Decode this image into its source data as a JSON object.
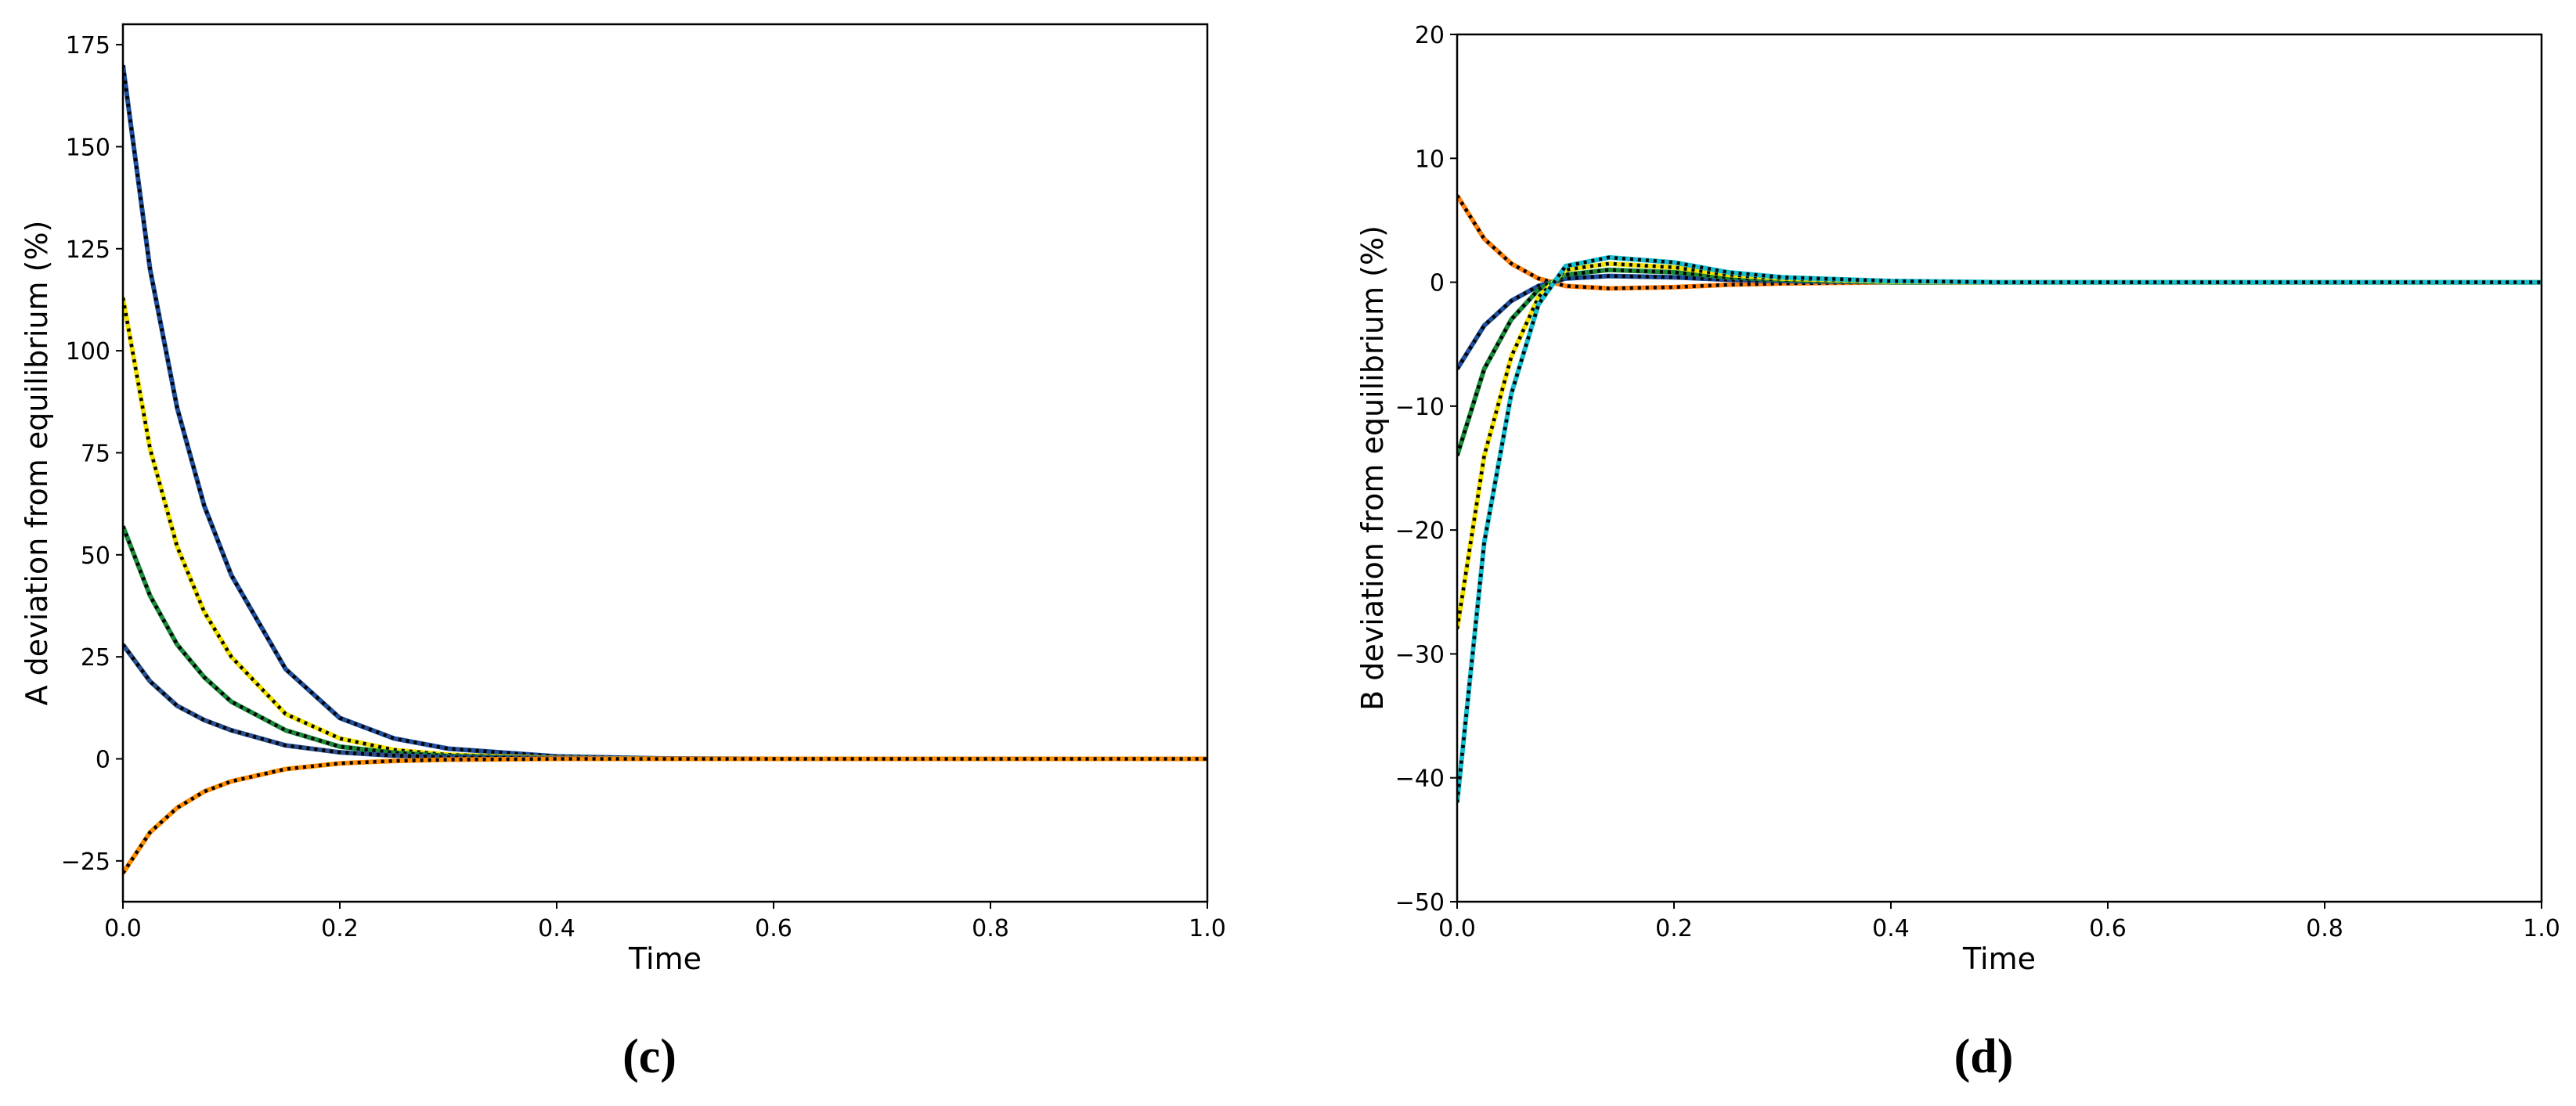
{
  "chart_data": [
    {
      "type": "line",
      "caption": "(c)",
      "xlabel": "Time",
      "ylabel": "A deviation from equilibrium (%)",
      "xlim": [
        0,
        1
      ],
      "ylim": [
        -35,
        180
      ],
      "xticks": [
        {
          "value": 0,
          "label": "0.0"
        },
        0.2,
        0.4,
        0.6,
        0.8,
        {
          "value": 1,
          "label": "1.0"
        }
      ],
      "yticks": [
        {
          "value": -25,
          "label": "−25"
        },
        0,
        25,
        50,
        75,
        100,
        125,
        150,
        175
      ],
      "dotted_overlay": true,
      "x": [
        0,
        0.025,
        0.05,
        0.075,
        0.1,
        0.15,
        0.2,
        0.25,
        0.3,
        0.4,
        0.5,
        0.6,
        0.8,
        1
      ],
      "series": [
        {
          "color": "#1f4e9c",
          "values": [
            170,
            120,
            86,
            62,
            45,
            22,
            10,
            5,
            2.5,
            0.6,
            0.1,
            0,
            0,
            0
          ]
        },
        {
          "color": "#f2e200",
          "values": [
            113,
            76,
            52,
            36,
            25,
            11,
            5,
            2.2,
            1,
            0.2,
            0,
            0,
            0,
            0
          ]
        },
        {
          "color": "#1a8a3a",
          "values": [
            57,
            40,
            28,
            20,
            14,
            7,
            3,
            1.5,
            0.7,
            0.1,
            0,
            0,
            0,
            0
          ]
        },
        {
          "color": "#2a4f8f",
          "values": [
            28,
            19,
            13,
            9.5,
            7,
            3.3,
            1.6,
            0.8,
            0.4,
            0.1,
            0,
            0,
            0,
            0
          ]
        },
        {
          "color": "#ff8c00",
          "values": [
            -28,
            -18,
            -12,
            -8,
            -5.5,
            -2.5,
            -1.1,
            -0.5,
            -0.2,
            0,
            0,
            0,
            0,
            0
          ]
        }
      ]
    },
    {
      "type": "line",
      "caption": "(d)",
      "xlabel": "Time",
      "ylabel": "B deviation from equilibrium (%)",
      "xlim": [
        0,
        1
      ],
      "ylim": [
        -50,
        20
      ],
      "xticks": [
        {
          "value": 0,
          "label": "0.0"
        },
        0.2,
        0.4,
        0.6,
        0.8,
        {
          "value": 1,
          "label": "1.0"
        }
      ],
      "yticks": [
        {
          "value": -50,
          "label": "−50"
        },
        {
          "value": -40,
          "label": "−40"
        },
        {
          "value": -30,
          "label": "−30"
        },
        {
          "value": -20,
          "label": "−20"
        },
        {
          "value": -10,
          "label": "−10"
        },
        0,
        10,
        20
      ],
      "dotted_overlay": true,
      "x": [
        0,
        0.025,
        0.05,
        0.075,
        0.1,
        0.14,
        0.2,
        0.25,
        0.3,
        0.4,
        0.5,
        0.6,
        0.8,
        1
      ],
      "series": [
        {
          "color": "#ff7f0e",
          "values": [
            7,
            3.5,
            1.5,
            0.3,
            -0.3,
            -0.5,
            -0.4,
            -0.2,
            -0.1,
            0,
            0,
            0,
            0,
            0
          ]
        },
        {
          "color": "#1f4e9c",
          "values": [
            -7,
            -3.5,
            -1.5,
            -0.3,
            0.3,
            0.5,
            0.4,
            0.2,
            0.1,
            0,
            0,
            0,
            0,
            0
          ]
        },
        {
          "color": "#1a8a3a",
          "values": [
            -14,
            -7,
            -3,
            -0.6,
            0.6,
            1,
            0.8,
            0.4,
            0.2,
            0,
            0,
            0,
            0,
            0
          ]
        },
        {
          "color": "#f2e200",
          "values": [
            -28,
            -14,
            -6,
            -1.2,
            1,
            1.5,
            1.2,
            0.6,
            0.3,
            0.05,
            0,
            0,
            0,
            0
          ]
        },
        {
          "color": "#17becf",
          "values": [
            -42,
            -21,
            -9,
            -1.8,
            1.3,
            2,
            1.6,
            0.8,
            0.4,
            0.1,
            0,
            0,
            0,
            0
          ]
        }
      ]
    }
  ]
}
